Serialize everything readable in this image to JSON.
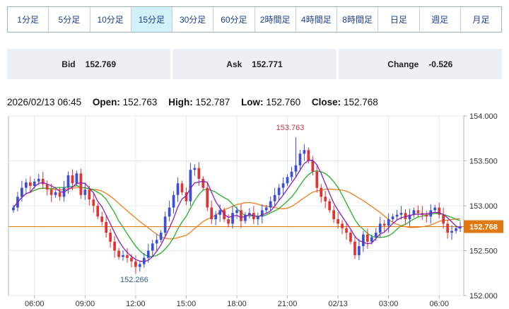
{
  "timeframes": [
    {
      "label": "1分足",
      "active": false
    },
    {
      "label": "5分足",
      "active": false
    },
    {
      "label": "10分足",
      "active": false
    },
    {
      "label": "15分足",
      "active": true
    },
    {
      "label": "30分足",
      "active": false
    },
    {
      "label": "60分足",
      "active": false
    },
    {
      "label": "2時間足",
      "active": false
    },
    {
      "label": "4時間足",
      "active": false
    },
    {
      "label": "8時間足",
      "active": false
    },
    {
      "label": "日足",
      "active": false
    },
    {
      "label": "週足",
      "active": false
    },
    {
      "label": "月足",
      "active": false
    }
  ],
  "quotes": {
    "bid_label": "Bid",
    "bid": "152.769",
    "ask_label": "Ask",
    "ask": "152.771",
    "change_label": "Change",
    "change": "-0.526"
  },
  "ohlc": {
    "datetime": "2026/02/13 06:45",
    "open_label": "Open:",
    "open": "152.763",
    "high_label": "High:",
    "high": "152.787",
    "low_label": "Low:",
    "low": "152.760",
    "close_label": "Close:",
    "close": "152.768"
  },
  "colors": {
    "up": "#3a4fd6",
    "down": "#e03333",
    "ma_short": "#8b1fb5",
    "ma_mid": "#26b026",
    "ma_long": "#f07d1e",
    "current_price_line": "#e07a10",
    "grid": "#e5e8ec",
    "axis": "#aab4be"
  },
  "chart_data": {
    "type": "candlestick",
    "ylim": [
      152.0,
      154.0
    ],
    "yticks": [
      "154.000",
      "153.500",
      "153.000",
      "152.500",
      "152.000"
    ],
    "x_tick_labels": [
      "06:00",
      "09:00",
      "12:00",
      "15:00",
      "18:00",
      "21:00",
      "02/13",
      "03:00",
      "06:00"
    ],
    "x_tick_index": [
      5,
      17,
      29,
      41,
      53,
      65,
      77,
      89,
      101
    ],
    "current_price": 152.768,
    "current_price_label": "152.768",
    "max_label": "153.763",
    "max_index": 67,
    "min_label": "152.266",
    "min_index": 30,
    "closes": [
      152.98,
      153.1,
      153.2,
      153.26,
      153.22,
      153.27,
      153.3,
      153.24,
      153.18,
      153.12,
      153.15,
      153.1,
      153.2,
      153.34,
      153.25,
      153.36,
      153.12,
      153.18,
      153.07,
      153.0,
      152.88,
      152.82,
      152.7,
      152.6,
      152.5,
      152.43,
      152.45,
      152.42,
      152.38,
      152.32,
      152.35,
      152.42,
      152.5,
      152.58,
      152.62,
      152.7,
      152.88,
      152.98,
      153.12,
      153.25,
      153.15,
      153.05,
      153.4,
      153.42,
      153.3,
      153.2,
      152.98,
      152.85,
      152.9,
      152.95,
      152.85,
      152.8,
      152.92,
      152.95,
      152.83,
      152.9,
      152.92,
      152.85,
      152.88,
      152.95,
      152.98,
      153.05,
      153.12,
      153.2,
      153.25,
      153.32,
      153.38,
      153.45,
      153.58,
      153.62,
      153.5,
      153.38,
      153.2,
      153.1,
      153.05,
      152.95,
      152.85,
      152.8,
      152.75,
      152.7,
      152.6,
      152.45,
      152.55,
      152.68,
      152.6,
      152.65,
      152.7,
      152.8,
      152.78,
      152.85,
      152.88,
      152.9,
      152.92,
      152.85,
      152.9,
      152.95,
      152.92,
      152.9,
      152.88,
      152.95,
      152.98,
      152.9,
      152.8,
      152.7,
      152.72,
      152.75,
      152.77
    ],
    "ma_short_period": 5,
    "ma_mid_period": 10,
    "ma_long_period": 20
  }
}
